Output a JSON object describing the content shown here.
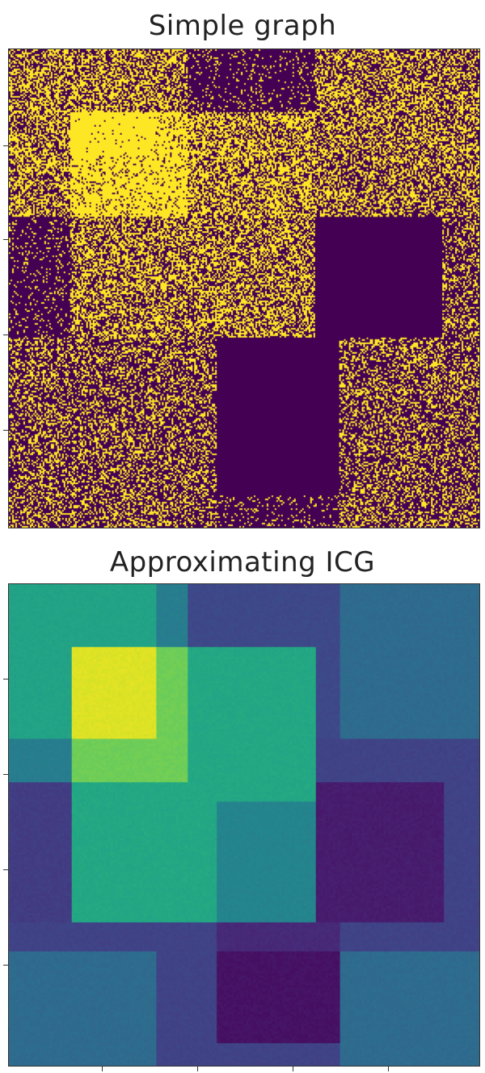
{
  "chart_data": [
    {
      "type": "heatmap",
      "title": "Simple graph",
      "xlabel": "",
      "ylabel": "",
      "colormap": "viridis",
      "grid": false,
      "legend": "none",
      "blocks": [
        {
          "rows": [
            0.0,
            0.38
          ],
          "cols": [
            0.0,
            0.38
          ],
          "density": 0.5
        },
        {
          "rows": [
            0.0,
            0.38
          ],
          "cols": [
            0.38,
            0.65
          ],
          "density": 0.12
        },
        {
          "rows": [
            0.0,
            0.38
          ],
          "cols": [
            0.65,
            1.0
          ],
          "density": 0.45
        },
        {
          "rows": [
            0.13,
            0.35
          ],
          "cols": [
            0.13,
            0.38
          ],
          "density": 0.85
        },
        {
          "rows": [
            0.13,
            0.35
          ],
          "cols": [
            0.38,
            0.65
          ],
          "density": 0.55
        },
        {
          "rows": [
            0.35,
            0.6
          ],
          "cols": [
            0.0,
            0.13
          ],
          "density": 0.12
        },
        {
          "rows": [
            0.35,
            0.6
          ],
          "cols": [
            0.13,
            0.65
          ],
          "density": 0.5
        },
        {
          "rows": [
            0.35,
            0.6
          ],
          "cols": [
            0.65,
            0.92
          ],
          "density": 0.0
        },
        {
          "rows": [
            0.35,
            0.6
          ],
          "cols": [
            0.92,
            1.0
          ],
          "density": 0.35
        },
        {
          "rows": [
            0.6,
            1.0
          ],
          "cols": [
            0.0,
            0.44
          ],
          "density": 0.35
        },
        {
          "rows": [
            0.6,
            0.93
          ],
          "cols": [
            0.44,
            0.7
          ],
          "density": 0.0
        },
        {
          "rows": [
            0.6,
            1.0
          ],
          "cols": [
            0.7,
            1.0
          ],
          "density": 0.35
        },
        {
          "rows": [
            0.93,
            1.0
          ],
          "cols": [
            0.44,
            0.7
          ],
          "density": 0.12
        }
      ],
      "hot_core": {
        "rows": [
          0.13,
          0.22
        ],
        "cols": [
          0.13,
          0.31
        ],
        "density": 0.98
      },
      "colors": {
        "low": "#440154",
        "high": "#fde725"
      }
    },
    {
      "type": "heatmap",
      "title": "Approximating ICG",
      "xlabel": "",
      "ylabel": "",
      "colormap": "viridis",
      "grid": false,
      "legend": "none",
      "blocks": [
        {
          "rows": [
            0.0,
            0.32
          ],
          "cols": [
            0.0,
            0.31
          ],
          "value": 0.58
        },
        {
          "rows": [
            0.0,
            0.13
          ],
          "cols": [
            0.31,
            0.38
          ],
          "value": 0.42
        },
        {
          "rows": [
            0.0,
            0.32
          ],
          "cols": [
            0.38,
            0.7
          ],
          "value": 0.22
        },
        {
          "rows": [
            0.0,
            0.32
          ],
          "cols": [
            0.7,
            1.0
          ],
          "value": 0.35
        },
        {
          "rows": [
            0.13,
            0.32
          ],
          "cols": [
            0.13,
            0.31
          ],
          "value": 0.95
        },
        {
          "rows": [
            0.13,
            0.41
          ],
          "cols": [
            0.31,
            0.38
          ],
          "value": 0.78
        },
        {
          "rows": [
            0.13,
            0.41
          ],
          "cols": [
            0.38,
            0.65
          ],
          "value": 0.6
        },
        {
          "rows": [
            0.32,
            0.41
          ],
          "cols": [
            0.0,
            0.13
          ],
          "value": 0.42
        },
        {
          "rows": [
            0.32,
            0.41
          ],
          "cols": [
            0.13,
            0.31
          ],
          "value": 0.78
        },
        {
          "rows": [
            0.32,
            0.41
          ],
          "cols": [
            0.65,
            1.0
          ],
          "value": 0.2
        },
        {
          "rows": [
            0.41,
            0.7
          ],
          "cols": [
            0.0,
            0.13
          ],
          "value": 0.18
        },
        {
          "rows": [
            0.41,
            0.7
          ],
          "cols": [
            0.13,
            0.44
          ],
          "value": 0.6
        },
        {
          "rows": [
            0.45,
            0.7
          ],
          "cols": [
            0.44,
            0.65
          ],
          "value": 0.45
        },
        {
          "rows": [
            0.41,
            0.45
          ],
          "cols": [
            0.44,
            0.65
          ],
          "value": 0.6
        },
        {
          "rows": [
            0.41,
            0.7
          ],
          "cols": [
            0.65,
            0.92
          ],
          "value": 0.08
        },
        {
          "rows": [
            0.41,
            0.7
          ],
          "cols": [
            0.92,
            1.0
          ],
          "value": 0.2
        },
        {
          "rows": [
            0.7,
            0.76
          ],
          "cols": [
            0.0,
            0.44
          ],
          "value": 0.2
        },
        {
          "rows": [
            0.7,
            0.76
          ],
          "cols": [
            0.44,
            0.7
          ],
          "value": 0.12
        },
        {
          "rows": [
            0.7,
            0.76
          ],
          "cols": [
            0.7,
            1.0
          ],
          "value": 0.2
        },
        {
          "rows": [
            0.76,
            1.0
          ],
          "cols": [
            0.0,
            0.31
          ],
          "value": 0.35
        },
        {
          "rows": [
            0.76,
            1.0
          ],
          "cols": [
            0.31,
            0.44
          ],
          "value": 0.2
        },
        {
          "rows": [
            0.76,
            0.95
          ],
          "cols": [
            0.44,
            0.7
          ],
          "value": 0.05
        },
        {
          "rows": [
            0.95,
            1.0
          ],
          "cols": [
            0.44,
            0.7
          ],
          "value": 0.2
        },
        {
          "rows": [
            0.76,
            0.95
          ],
          "cols": [
            0.7,
            0.92
          ],
          "value": 0.35
        },
        {
          "rows": [
            0.76,
            1.0
          ],
          "cols": [
            0.92,
            1.0
          ],
          "value": 0.35
        },
        {
          "rows": [
            0.95,
            1.0
          ],
          "cols": [
            0.7,
            0.92
          ],
          "value": 0.35
        }
      ],
      "colors": {
        "low": "#440154",
        "high": "#fde725"
      }
    }
  ]
}
